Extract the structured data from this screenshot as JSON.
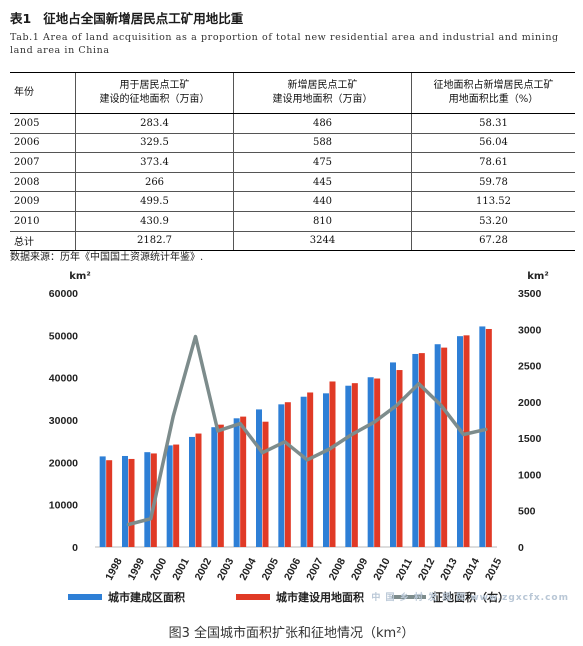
{
  "table": {
    "tag": "表1",
    "title": "征地占全国新增居民点工矿用地比重",
    "subtitle": "Tab.1   Area of land acquisition as a proportion of total new residential area and industrial and mining land area in China",
    "headers": [
      "年份",
      "用于居民点工矿\n建设的征地面积（万亩）",
      "新增居民点工矿\n建设用地面积（万亩）",
      "征地面积占新增居民点工矿\n用地面积比重（%）"
    ],
    "rows": [
      [
        "2005",
        "283.4",
        "486",
        "58.31"
      ],
      [
        "2006",
        "329.5",
        "588",
        "56.04"
      ],
      [
        "2007",
        "373.4",
        "475",
        "78.61"
      ],
      [
        "2008",
        "266",
        "445",
        "59.78"
      ],
      [
        "2009",
        "499.5",
        "440",
        "113.52"
      ],
      [
        "2010",
        "430.9",
        "810",
        "53.20"
      ],
      [
        "总计",
        "2182.7",
        "3244",
        "67.28"
      ]
    ],
    "source": "数据来源：历年《中国国土资源统计年鉴》."
  },
  "chart_data": {
    "type": "bar",
    "categories": [
      "1998",
      "1999",
      "2000",
      "2001",
      "2002",
      "2003",
      "2004",
      "2005",
      "2006",
      "2007",
      "2008",
      "2009",
      "2010",
      "2011",
      "2012",
      "2013",
      "2014",
      "2015"
    ],
    "series": [
      {
        "name": "城市建成区面积",
        "type": "bar",
        "axis": "left",
        "color": "#2e7fd6",
        "values": [
          21400,
          21500,
          22400,
          24000,
          26000,
          28300,
          30400,
          32500,
          33700,
          35500,
          36300,
          38100,
          40100,
          43600,
          45600,
          47900,
          49800,
          52100
        ]
      },
      {
        "name": "城市建设用地面积",
        "type": "bar",
        "axis": "left",
        "color": "#e03a26",
        "values": [
          20500,
          20800,
          22100,
          24200,
          26800,
          28900,
          30800,
          29600,
          34200,
          36500,
          39100,
          38700,
          39800,
          41800,
          45800,
          47100,
          50000,
          51500
        ]
      },
      {
        "name": "征地面积（右）",
        "type": "line",
        "axis": "right",
        "color": "#7d8c8c",
        "values": [
          null,
          310,
          390,
          1800,
          2900,
          1600,
          1700,
          1300,
          1450,
          1200,
          1350,
          1550,
          1720,
          1950,
          2250,
          1950,
          1550,
          1620
        ]
      }
    ],
    "yleft": {
      "unit": "km²",
      "ylim": [
        0,
        60000
      ],
      "ticks": [
        "0",
        "10000",
        "20000",
        "30000",
        "40000",
        "50000",
        "60000"
      ]
    },
    "yright": {
      "unit": "km²",
      "ylim": [
        0,
        3500
      ],
      "ticks": [
        "0",
        "500",
        "1000",
        "1500",
        "2000",
        "2500",
        "3000",
        "3500"
      ]
    },
    "grid": false,
    "legend": "bottom"
  },
  "caption": "图3 全国城市面积扩张和征地情况（km²）",
  "watermark": "中 国 乡 村 发 现 网  www.zgxcfx.com"
}
